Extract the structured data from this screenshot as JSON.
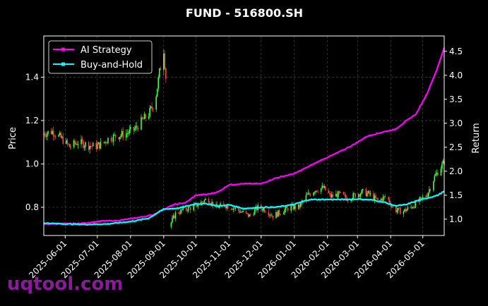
{
  "watermark": "uqtool.com",
  "chart_data": {
    "type": "candlestick+line",
    "title": "FUND - 516800.SH",
    "xlabel": "",
    "ylabel_left": "Price",
    "ylabel_right": "Return",
    "x_ticks": [
      "2025-06-01",
      "2025-07-01",
      "2025-08-01",
      "2025-09-01",
      "2025-10-01",
      "2025-11-01",
      "2025-12-01",
      "2026-01-01",
      "2026-02-01",
      "2026-03-01",
      "2026-04-01",
      "2026-05-01"
    ],
    "x_range": [
      "2025-05-12",
      "2026-05-21"
    ],
    "ylim_left": [
      0.67,
      1.59
    ],
    "yticks_left": [
      0.8,
      1.0,
      1.2,
      1.4
    ],
    "ylim_right": [
      0.66,
      4.82
    ],
    "yticks_right": [
      1.0,
      1.5,
      2.0,
      2.5,
      3.0,
      3.5,
      4.0,
      4.5
    ],
    "grid": true,
    "legend_position": "top-left",
    "colors": {
      "up": "#44ff44",
      "down": "#ff4444",
      "ai": "#ff00ff",
      "bh": "#00ffff"
    },
    "price_segments": [
      {
        "dates": [
          "2025-05-12",
          "2025-05-20",
          "2025-05-28",
          "2025-06-05",
          "2025-06-13",
          "2025-06-20",
          "2025-06-28",
          "2025-07-05",
          "2025-07-12",
          "2025-07-20",
          "2025-07-28",
          "2025-08-05",
          "2025-08-12",
          "2025-08-18",
          "2025-08-24",
          "2025-08-28",
          "2025-09-01",
          "2025-09-03"
        ],
        "values": [
          1.14,
          1.15,
          1.12,
          1.08,
          1.1,
          1.09,
          1.08,
          1.09,
          1.12,
          1.13,
          1.14,
          1.16,
          1.2,
          1.23,
          1.29,
          1.42,
          1.53,
          1.4
        ]
      },
      {
        "dates": [
          "2025-09-06",
          "2025-09-12",
          "2025-09-20",
          "2025-09-28",
          "2025-10-05",
          "2025-10-12",
          "2025-10-20",
          "2025-10-28",
          "2025-11-04",
          "2025-11-12",
          "2025-11-20",
          "2025-11-28",
          "2025-12-05",
          "2025-12-12",
          "2025-12-20",
          "2025-12-28",
          "2026-01-05",
          "2026-01-12",
          "2026-01-20",
          "2026-01-28",
          "2026-02-04",
          "2026-02-12",
          "2026-02-20",
          "2026-02-28",
          "2026-03-06",
          "2026-03-12",
          "2026-03-20",
          "2026-03-28",
          "2026-04-04",
          "2026-04-12",
          "2026-04-20",
          "2026-04-28",
          "2026-05-05",
          "2026-05-12",
          "2026-05-21"
        ],
        "values": [
          0.71,
          0.77,
          0.79,
          0.8,
          0.82,
          0.84,
          0.8,
          0.81,
          0.8,
          0.78,
          0.76,
          0.8,
          0.79,
          0.76,
          0.78,
          0.8,
          0.8,
          0.85,
          0.88,
          0.89,
          0.85,
          0.86,
          0.84,
          0.86,
          0.87,
          0.86,
          0.83,
          0.85,
          0.79,
          0.78,
          0.8,
          0.83,
          0.86,
          0.94,
          1.01
        ]
      }
    ],
    "series": [
      {
        "name": "AI Strategy",
        "x": [
          "2025-05-12",
          "2025-06-15",
          "2025-07-05",
          "2025-07-20",
          "2025-08-10",
          "2025-08-22",
          "2025-09-01",
          "2025-09-10",
          "2025-09-22",
          "2025-10-01",
          "2025-10-12",
          "2025-10-22",
          "2025-11-01",
          "2025-11-15",
          "2025-12-01",
          "2025-12-15",
          "2026-01-01",
          "2026-01-10",
          "2026-01-25",
          "2026-02-10",
          "2026-02-25",
          "2026-03-10",
          "2026-03-25",
          "2026-04-05",
          "2026-04-15",
          "2026-04-25",
          "2026-05-05",
          "2026-05-15",
          "2026-05-21"
        ],
        "y": [
          0.9,
          0.91,
          0.96,
          0.97,
          1.04,
          1.09,
          1.2,
          1.3,
          1.35,
          1.5,
          1.52,
          1.57,
          1.72,
          1.74,
          1.74,
          1.86,
          1.95,
          2.05,
          2.22,
          2.38,
          2.55,
          2.73,
          2.82,
          2.87,
          3.04,
          3.2,
          3.62,
          4.17,
          4.58
        ]
      },
      {
        "name": "Buy-and-Hold",
        "x": [
          "2025-05-12",
          "2025-06-01",
          "2025-06-20",
          "2025-07-10",
          "2025-08-01",
          "2025-08-18",
          "2025-09-01",
          "2025-09-15",
          "2025-10-01",
          "2025-10-12",
          "2025-10-22",
          "2025-11-01",
          "2025-11-15",
          "2025-12-01",
          "2025-12-15",
          "2026-01-01",
          "2026-01-15",
          "2026-02-01",
          "2026-02-15",
          "2026-03-01",
          "2026-03-15",
          "2026-03-25",
          "2026-04-05",
          "2026-04-15",
          "2026-04-25",
          "2026-05-05",
          "2026-05-15",
          "2026-05-21"
        ],
        "y": [
          0.92,
          0.9,
          0.89,
          0.9,
          0.95,
          1.02,
          1.21,
          1.23,
          1.32,
          1.32,
          1.27,
          1.3,
          1.22,
          1.25,
          1.25,
          1.31,
          1.41,
          1.41,
          1.41,
          1.42,
          1.4,
          1.36,
          1.28,
          1.3,
          1.38,
          1.44,
          1.5,
          1.58
        ]
      }
    ]
  }
}
